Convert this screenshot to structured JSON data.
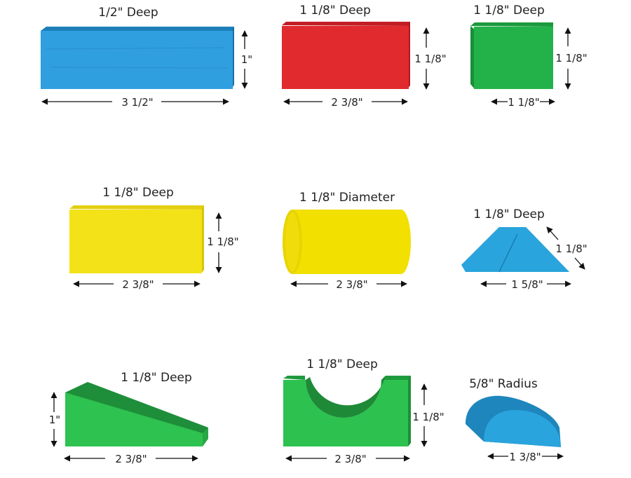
{
  "blocks": [
    {
      "name": "blue-long-block",
      "color": "#2f9fe0",
      "depth": "1/2\" Deep",
      "width": "3 1/2\"",
      "height": "1\""
    },
    {
      "name": "red-block",
      "color": "#e02a2e",
      "depth": "1 1/8\" Deep",
      "width": "2 3/8\"",
      "height": "1 1/8\""
    },
    {
      "name": "green-cube",
      "color": "#23b24a",
      "depth": "1 1/8\" Deep",
      "width": "1 1/8\"",
      "height": "1 1/8\""
    },
    {
      "name": "yellow-block",
      "color": "#f4e218",
      "depth": "1 1/8\" Deep",
      "width": "2 3/8\"",
      "height": "1 1/8\""
    },
    {
      "name": "yellow-cylinder",
      "color": "#f2e000",
      "depth": "1 1/8\" Diameter",
      "width": "2 3/8\""
    },
    {
      "name": "blue-triangle",
      "color": "#2aa4dc",
      "depth": "1 1/8\" Deep",
      "width": "1 5/8\"",
      "height": "1 1/8\""
    },
    {
      "name": "green-ramp",
      "color": "#2ec250",
      "depth": "1 1/8\" Deep",
      "width": "2 3/8\"",
      "height": "1\""
    },
    {
      "name": "green-arch",
      "color": "#2dc24f",
      "depth": "1 1/8\" Deep",
      "width": "2 3/8\"",
      "height": "1 1/8\""
    },
    {
      "name": "blue-half-round",
      "color": "#2aa4dc",
      "depth": "5/8\" Radius",
      "width": "1 3/8\""
    }
  ]
}
